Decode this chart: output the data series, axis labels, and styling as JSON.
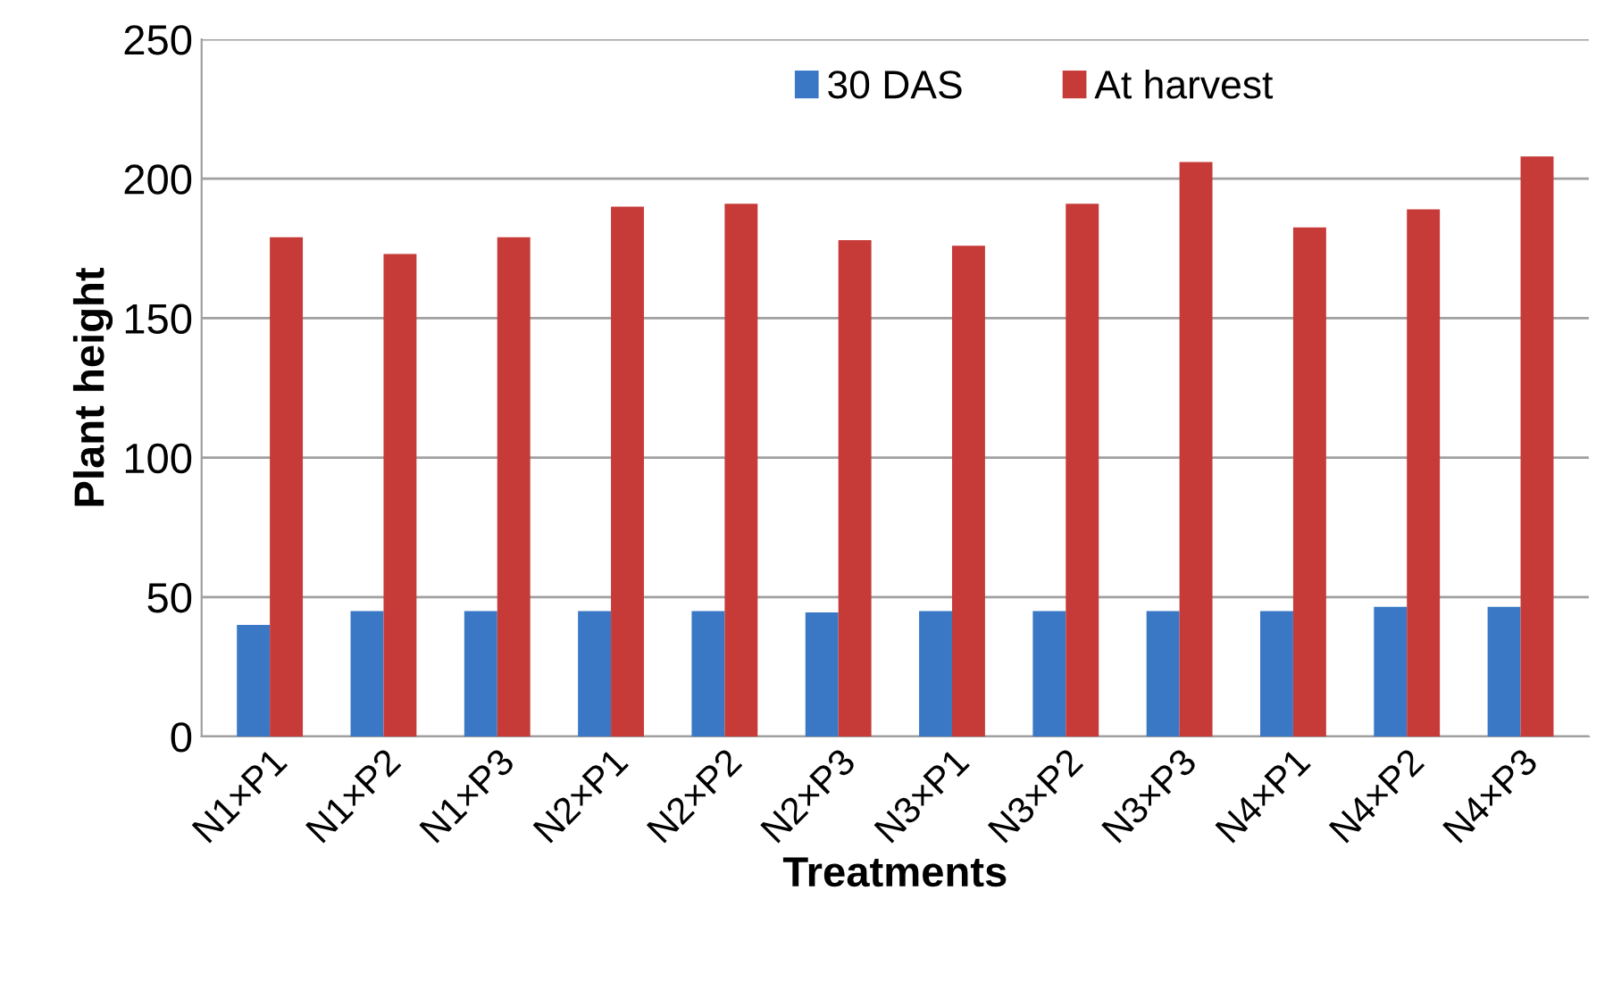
{
  "chart_data": {
    "type": "bar",
    "xlabel": "Treatments",
    "ylabel": "Plant height",
    "categories": [
      "N1×P1",
      "N1×P2",
      "N1×P3",
      "N2×P1",
      "N2×P2",
      "N2×P3",
      "N3×P1",
      "N3×P2",
      "N3×P3",
      "N4×P1",
      "N4×P2",
      "N4×P3"
    ],
    "series": [
      {
        "name": "30 DAS",
        "color": "#3a78c6",
        "values": [
          40,
          45,
          45,
          45,
          45,
          44.5,
          45,
          45,
          45,
          45,
          46.5,
          46.5
        ]
      },
      {
        "name": "At harvest",
        "color": "#c63a38",
        "values": [
          179,
          173,
          179,
          190,
          191,
          178,
          176,
          191,
          206,
          182.5,
          189,
          208
        ]
      }
    ],
    "ylim": [
      0,
      250
    ],
    "yticks": [
      0,
      50,
      100,
      150,
      200,
      250
    ],
    "grid": "y",
    "legend": "top"
  }
}
